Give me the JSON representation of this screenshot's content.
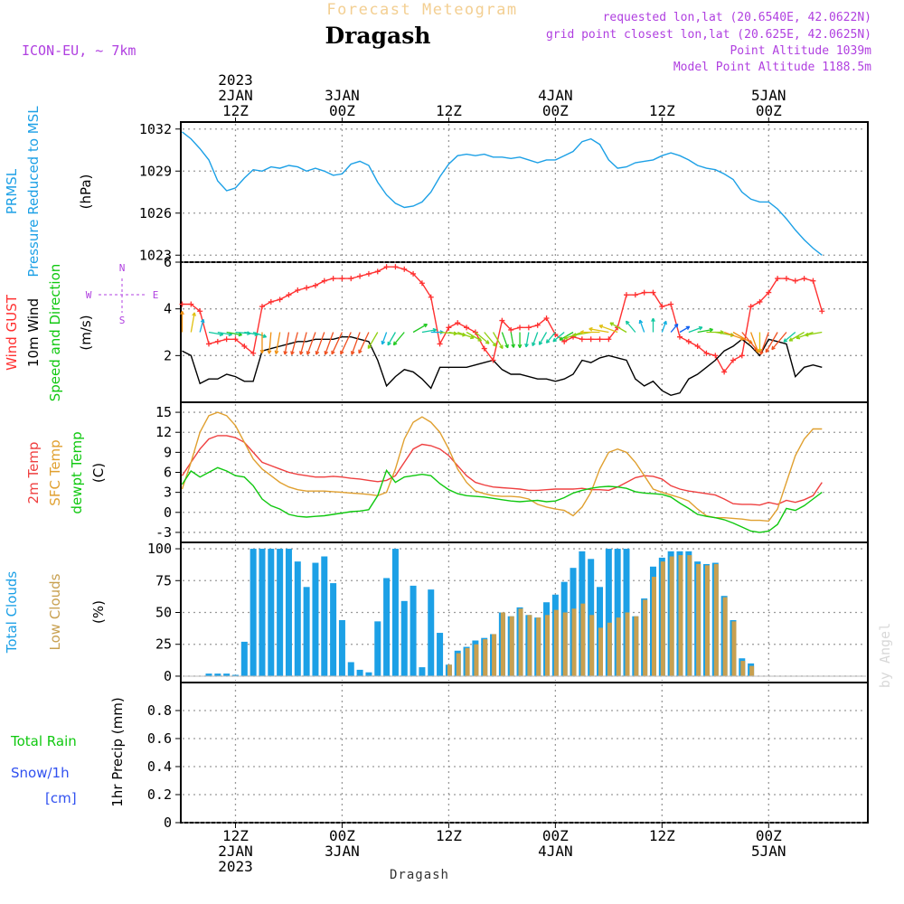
{
  "header": {
    "product": "Forecast Meteogram",
    "location": "Dragash",
    "model": "ICON-EU, ~ 7km",
    "requested": "requested lon,lat (20.6540E, 42.0622N)",
    "grid_point": "grid point closest lon,lat (20.625E, 42.0625N)",
    "point_altitude": "Point Altitude 1039m",
    "model_altitude": "Model Point Altitude 1188.5m",
    "watermark": "by Angel",
    "footer_location": "Dragash"
  },
  "colors": {
    "pressure": "#1ca0e6",
    "wind_gust": "#ff3030",
    "wind_10m": "#000000",
    "temp_2m": "#ef4040",
    "sfc_temp": "#e0a030",
    "dewpoint": "#10c810",
    "total_clouds": "#1ca0e6",
    "low_clouds": "#c8a050",
    "rain": "#10c810",
    "snow": "#3050f0",
    "compass": "#b040e0",
    "grid": "#9a9a9a"
  },
  "time_axis": {
    "hours_total": 63,
    "top_labels": [
      {
        "hour": 6,
        "lines": [
          "2023",
          "2JAN",
          "12Z"
        ]
      },
      {
        "hour": 18,
        "lines": [
          "3JAN",
          "00Z"
        ]
      },
      {
        "hour": 30,
        "lines": [
          "12Z"
        ]
      },
      {
        "hour": 42,
        "lines": [
          "4JAN",
          "00Z"
        ]
      },
      {
        "hour": 54,
        "lines": [
          "12Z"
        ]
      },
      {
        "hour": 66,
        "lines": [
          "5JAN",
          "00Z"
        ]
      }
    ],
    "bottom_labels": [
      {
        "hour": 6,
        "lines": [
          "12Z",
          "2JAN",
          "2023"
        ]
      },
      {
        "hour": 18,
        "lines": [
          "00Z",
          "3JAN"
        ]
      },
      {
        "hour": 30,
        "lines": [
          "12Z"
        ]
      },
      {
        "hour": 42,
        "lines": [
          "00Z",
          "4JAN"
        ]
      },
      {
        "hour": 54,
        "lines": [
          "12Z"
        ]
      },
      {
        "hour": 66,
        "lines": [
          "00Z",
          "5JAN"
        ]
      }
    ],
    "grid_hours": [
      6,
      18,
      30,
      42,
      54,
      66
    ]
  },
  "chart_data": [
    {
      "type": "line",
      "id": "pressure",
      "title": "PRMSL Pressure Reduced to MSL",
      "label_lines": [
        {
          "text": "PRMSL",
          "color": "#1ca0e6"
        },
        {
          "text": "Pressure Reduced to MSL",
          "color": "#1ca0e6"
        },
        {
          "text": "(hPa)",
          "color": "#000000"
        }
      ],
      "ylabel": "hPa",
      "ylim": [
        1022.5,
        1032.5
      ],
      "yticks": [
        1023,
        1026,
        1029,
        1032
      ],
      "series": [
        {
          "name": "PRMSL",
          "color": "#1ca0e6",
          "values": [
            1031.8,
            1031.3,
            1030.6,
            1029.8,
            1028.3,
            1027.6,
            1027.8,
            1028.5,
            1029.1,
            1029.0,
            1029.3,
            1029.2,
            1029.4,
            1029.3,
            1029.0,
            1029.2,
            1029.0,
            1028.7,
            1028.8,
            1029.5,
            1029.7,
            1029.4,
            1028.2,
            1027.3,
            1026.7,
            1026.4,
            1026.5,
            1026.8,
            1027.5,
            1028.6,
            1029.5,
            1030.1,
            1030.2,
            1030.1,
            1030.2,
            1030.0,
            1030.0,
            1029.9,
            1030.0,
            1029.8,
            1029.6,
            1029.8,
            1029.8,
            1030.1,
            1030.4,
            1031.1,
            1031.3,
            1030.9,
            1029.8,
            1029.2,
            1029.3,
            1029.6,
            1029.7,
            1029.8,
            1030.1,
            1030.3,
            1030.1,
            1029.8,
            1029.4,
            1029.2,
            1029.1,
            1028.8,
            1028.4,
            1027.5,
            1027.0,
            1026.8,
            1026.8,
            1026.3,
            1025.6,
            1024.8,
            1024.1,
            1023.5,
            1023.0
          ]
        }
      ]
    },
    {
      "type": "line",
      "id": "wind",
      "title": "Wind GUST / 10m Wind Speed and Direction",
      "label_lines": [
        {
          "text": "Wind GUST",
          "color": "#ff3030"
        },
        {
          "text": "10m Wind",
          "color": "#000000"
        },
        {
          "text": "Speed and Direction",
          "color": "#10c810"
        },
        {
          "text": "(m/s)",
          "color": "#000000"
        }
      ],
      "compass": {
        "n": "N",
        "s": "S",
        "w": "W",
        "e": "E"
      },
      "ylabel": "m/s",
      "ylim": [
        0,
        6
      ],
      "yticks": [
        2,
        4,
        6
      ],
      "series": [
        {
          "name": "Wind GUST",
          "color": "#ff3030",
          "values": [
            4.2,
            4.2,
            3.9,
            2.5,
            2.6,
            2.7,
            2.7,
            2.4,
            2.1,
            4.1,
            4.3,
            4.4,
            4.6,
            4.8,
            4.9,
            5.0,
            5.2,
            5.3,
            5.3,
            5.3,
            5.4,
            5.5,
            5.6,
            5.8,
            5.8,
            5.7,
            5.5,
            5.1,
            4.5,
            2.5,
            3.2,
            3.4,
            3.2,
            3.0,
            2.3,
            1.8,
            3.5,
            3.1,
            3.2,
            3.2,
            3.3,
            3.6,
            2.9,
            2.6,
            2.8,
            2.7,
            2.7,
            2.7,
            2.7,
            3.2,
            4.6,
            4.6,
            4.7,
            4.7,
            4.1,
            4.2,
            2.8,
            2.6,
            2.4,
            2.1,
            2.0,
            1.3,
            1.8,
            2.0,
            4.1,
            4.3,
            4.7,
            5.3,
            5.3,
            5.2,
            5.3,
            5.2,
            3.9
          ]
        },
        {
          "name": "10m Wind",
          "color": "#000000",
          "values": [
            2.2,
            2.0,
            0.8,
            1.0,
            1.0,
            1.2,
            1.1,
            0.9,
            0.9,
            2.2,
            2.3,
            2.4,
            2.5,
            2.6,
            2.6,
            2.7,
            2.7,
            2.7,
            2.8,
            2.8,
            2.7,
            2.6,
            1.8,
            0.7,
            1.1,
            1.4,
            1.3,
            1.0,
            0.6,
            1.5,
            1.5,
            1.5,
            1.5,
            1.6,
            1.7,
            1.8,
            1.4,
            1.2,
            1.2,
            1.1,
            1.0,
            1.0,
            0.9,
            1.0,
            1.2,
            1.8,
            1.7,
            1.9,
            2.0,
            1.9,
            1.8,
            1.0,
            0.7,
            0.9,
            0.5,
            0.3,
            0.4,
            1.0,
            1.2,
            1.5,
            1.8,
            2.2,
            2.4,
            2.7,
            2.4,
            2.0,
            2.7,
            2.6,
            2.5,
            1.1,
            1.5,
            1.6,
            1.5
          ]
        }
      ],
      "wind_directions_deg": [
        0,
        10,
        15,
        100,
        100,
        100,
        95,
        100,
        110,
        180,
        185,
        190,
        190,
        195,
        195,
        200,
        200,
        200,
        205,
        205,
        200,
        205,
        210,
        200,
        210,
        220,
        60,
        80,
        90,
        95,
        100,
        110,
        120,
        130,
        140,
        150,
        160,
        170,
        180,
        190,
        200,
        210,
        220,
        230,
        240,
        250,
        260,
        270,
        280,
        290,
        300,
        320,
        340,
        0,
        20,
        40,
        60,
        70,
        80,
        90,
        100,
        110,
        120,
        140,
        160,
        180,
        200,
        210,
        220,
        230,
        240,
        250,
        260
      ]
    },
    {
      "type": "line",
      "id": "temperature",
      "title": "2m Temp / SFC Temp / dewpt Temp",
      "label_lines": [
        {
          "text": "2m Temp",
          "color": "#ef4040"
        },
        {
          "text": "SFC Temp",
          "color": "#e0a030"
        },
        {
          "text": "dewpt Temp",
          "color": "#10c810"
        },
        {
          "text": "(C)",
          "color": "#000000"
        }
      ],
      "ylabel": "C",
      "ylim": [
        -4.5,
        16.5
      ],
      "yticks": [
        -3,
        0,
        3,
        6,
        9,
        12,
        15
      ],
      "series": [
        {
          "name": "2m Temp",
          "color": "#ef4040",
          "values": [
            5.5,
            7.5,
            9.5,
            11.0,
            11.5,
            11.5,
            11.2,
            10.5,
            9.0,
            7.5,
            7.0,
            6.5,
            6.0,
            5.7,
            5.5,
            5.3,
            5.3,
            5.4,
            5.3,
            5.1,
            5.0,
            4.8,
            4.6,
            4.8,
            5.5,
            7.5,
            9.5,
            10.2,
            10.0,
            9.5,
            8.5,
            7.0,
            5.5,
            4.5,
            4.1,
            3.8,
            3.7,
            3.6,
            3.5,
            3.3,
            3.3,
            3.4,
            3.5,
            3.5,
            3.5,
            3.6,
            3.4,
            3.4,
            3.3,
            3.8,
            4.5,
            5.2,
            5.5,
            5.4,
            5.0,
            4.0,
            3.5,
            3.2,
            3.0,
            2.8,
            2.6,
            2.0,
            1.3,
            1.2,
            1.2,
            1.1,
            1.5,
            1.2,
            1.8,
            1.5,
            1.9,
            2.5,
            4.5
          ]
        },
        {
          "name": "SFC Temp",
          "color": "#e0a030",
          "values": [
            3.5,
            7.5,
            12.0,
            14.5,
            15.0,
            14.5,
            13.0,
            10.5,
            8.0,
            6.5,
            5.5,
            4.5,
            3.8,
            3.4,
            3.2,
            3.2,
            3.2,
            3.1,
            3.0,
            2.9,
            2.8,
            2.7,
            2.5,
            3.0,
            6.5,
            11.0,
            13.5,
            14.3,
            13.5,
            12.0,
            9.5,
            6.5,
            4.5,
            3.2,
            2.8,
            2.5,
            2.4,
            2.4,
            2.3,
            2.0,
            1.2,
            0.8,
            0.5,
            0.3,
            -0.5,
            0.8,
            3.0,
            6.5,
            9.0,
            9.5,
            9.0,
            7.5,
            5.5,
            3.5,
            3.0,
            2.6,
            2.2,
            1.7,
            0.5,
            -0.5,
            -0.8,
            -0.8,
            -0.9,
            -1.0,
            -1.2,
            -1.2,
            -1.3,
            0.5,
            4.5,
            8.5,
            11.0,
            12.5,
            12.5
          ]
        },
        {
          "name": "dewpt Temp",
          "color": "#10c810",
          "values": [
            4.2,
            6.2,
            5.3,
            6.0,
            6.7,
            6.2,
            5.5,
            5.3,
            4.0,
            2.0,
            1.0,
            0.5,
            -0.3,
            -0.6,
            -0.7,
            -0.6,
            -0.5,
            -0.3,
            -0.1,
            0.1,
            0.2,
            0.4,
            2.5,
            6.3,
            4.5,
            5.3,
            5.5,
            5.7,
            5.5,
            4.3,
            3.4,
            2.8,
            2.5,
            2.4,
            2.3,
            2.1,
            1.9,
            1.7,
            1.6,
            1.7,
            1.8,
            1.6,
            1.7,
            2.2,
            2.9,
            3.3,
            3.6,
            3.8,
            3.9,
            3.8,
            3.6,
            3.1,
            2.9,
            2.8,
            2.7,
            2.3,
            1.4,
            0.6,
            -0.3,
            -0.6,
            -0.8,
            -1.1,
            -1.6,
            -2.2,
            -2.8,
            -3.0,
            -2.8,
            -1.8,
            0.6,
            0.3,
            1.0,
            2.0,
            3.0
          ]
        }
      ]
    },
    {
      "type": "bar",
      "id": "clouds",
      "title": "Total Clouds / Low Clouds",
      "label_lines": [
        {
          "text": "Total Clouds",
          "color": "#1ca0e6"
        },
        {
          "text": "Low Clouds",
          "color": "#c8a050"
        },
        {
          "text": "(%)",
          "color": "#000000"
        }
      ],
      "ylabel": "%",
      "ylim": [
        -5,
        105
      ],
      "yticks": [
        0,
        25,
        50,
        75,
        100
      ],
      "series": [
        {
          "name": "Total Clouds",
          "color": "#1ca0e6",
          "values": [
            0,
            0,
            0,
            2,
            2,
            2,
            1,
            27,
            100,
            100,
            100,
            100,
            100,
            90,
            70,
            89,
            94,
            73,
            44,
            11,
            5,
            3,
            43,
            77,
            100,
            59,
            71,
            7,
            68,
            34,
            9,
            20,
            23,
            28,
            30,
            33,
            50,
            47,
            54,
            48,
            46,
            58,
            64,
            74,
            85,
            98,
            92,
            70,
            100,
            100,
            100,
            47,
            61,
            86,
            93,
            98,
            98,
            98,
            90,
            88,
            89,
            63,
            44,
            14,
            10,
            0,
            0,
            0,
            0,
            0,
            0,
            0,
            0
          ]
        },
        {
          "name": "Low Clouds",
          "color": "#c8a050",
          "values": [
            0,
            0,
            0,
            0,
            0,
            0,
            0,
            0,
            0,
            0,
            0,
            0,
            0,
            0,
            0,
            0,
            0,
            0,
            0,
            0,
            0,
            0,
            0,
            0,
            0,
            0,
            0,
            0,
            0,
            0,
            9,
            18,
            22,
            25,
            29,
            33,
            50,
            47,
            53,
            48,
            46,
            48,
            52,
            50,
            53,
            57,
            48,
            38,
            42,
            46,
            50,
            47,
            60,
            78,
            90,
            94,
            95,
            95,
            88,
            87,
            88,
            62,
            43,
            12,
            8,
            0,
            0,
            0,
            0,
            0,
            0,
            0,
            0
          ]
        }
      ]
    },
    {
      "type": "bar",
      "id": "precip",
      "title": "1hr Precip (mm)",
      "label_lines": [
        {
          "text": "Total  Rain",
          "color": "#10c810"
        },
        {
          "text": "Snow/1h",
          "color": "#3050f0"
        },
        {
          "text": "[cm]",
          "color": "#3050f0"
        }
      ],
      "ylabel": "1hr Precip (mm)",
      "ylim": [
        0,
        1.0
      ],
      "yticks": [
        0,
        0.2,
        0.4,
        0.6,
        0.8
      ],
      "series": [
        {
          "name": "Total Rain",
          "color": "#10c810",
          "values": []
        },
        {
          "name": "Snow/1h",
          "color": "#3050f0",
          "values": []
        }
      ]
    }
  ]
}
